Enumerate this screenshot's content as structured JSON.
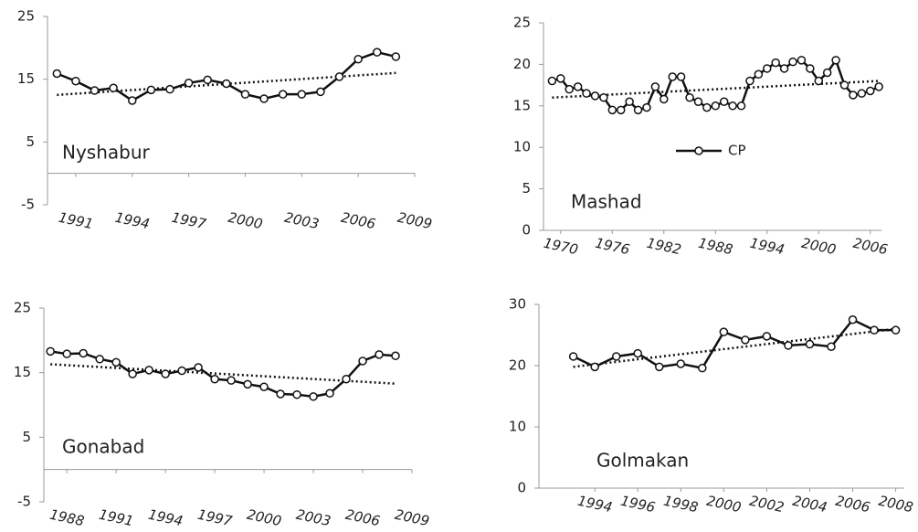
{
  "chart_data": [
    {
      "type": "line",
      "label": "Nyshabur",
      "x": [
        1990,
        1991,
        1992,
        1993,
        1994,
        1995,
        1996,
        1997,
        1998,
        1999,
        2000,
        2001,
        2002,
        2003,
        2004,
        2005,
        2006,
        2007,
        2008
      ],
      "series": [
        {
          "name": "CP",
          "color": "#111111",
          "values": [
            15.9,
            14.7,
            13.2,
            13.6,
            11.6,
            13.3,
            13.4,
            14.4,
            14.9,
            14.3,
            12.6,
            11.9,
            12.6,
            12.6,
            13.0,
            15.4,
            18.2,
            19.3,
            18.6
          ]
        }
      ],
      "trend": {
        "x": [
          1990,
          2008
        ],
        "values": [
          12.5,
          16.0
        ]
      },
      "xlim": [
        1989.5,
        2009
      ],
      "xticks": [
        1991,
        1994,
        1997,
        2000,
        2003,
        2006,
        2009
      ],
      "ylim": [
        -5,
        25
      ],
      "yticks": [
        -5,
        5,
        15,
        25
      ]
    },
    {
      "type": "line",
      "label": "Mashad",
      "legend": "center",
      "x": [
        1969,
        1970,
        1971,
        1972,
        1973,
        1974,
        1975,
        1976,
        1977,
        1978,
        1979,
        1980,
        1981,
        1982,
        1983,
        1984,
        1985,
        1986,
        1987,
        1988,
        1989,
        1990,
        1991,
        1992,
        1993,
        1994,
        1995,
        1996,
        1997,
        1998,
        1999,
        2000,
        2001,
        2002,
        2003,
        2004,
        2005,
        2006,
        2007
      ],
      "series": [
        {
          "name": "CP",
          "color": "#111111",
          "values": [
            18,
            18.3,
            17,
            17.3,
            16.5,
            16.2,
            16,
            14.5,
            14.5,
            15.5,
            14.5,
            14.8,
            17.3,
            15.8,
            18.5,
            18.5,
            16,
            15.5,
            14.8,
            15,
            15.5,
            15,
            15,
            18,
            18.8,
            19.5,
            20.2,
            19.5,
            20.3,
            20.5,
            19.5,
            18,
            19,
            20.5,
            17.5,
            16.3,
            16.5,
            16.8,
            17.3
          ]
        }
      ],
      "trend": {
        "x": [
          1969,
          2007
        ],
        "values": [
          16.0,
          18.0
        ]
      },
      "xlim": [
        1968,
        2007.3
      ],
      "xticks": [
        1970,
        1976,
        1982,
        1988,
        1994,
        2000,
        2006
      ],
      "ylim": [
        0,
        25
      ],
      "yticks": [
        0,
        5,
        10,
        15,
        20,
        25
      ]
    },
    {
      "type": "line",
      "label": "Gonabad",
      "x": [
        1987,
        1988,
        1989,
        1990,
        1991,
        1992,
        1993,
        1994,
        1995,
        1996,
        1997,
        1998,
        1999,
        2000,
        2001,
        2002,
        2003,
        2004,
        2005,
        2006,
        2007,
        2008
      ],
      "series": [
        {
          "name": "CP",
          "color": "#111111",
          "values": [
            18.3,
            17.9,
            18,
            17.1,
            16.6,
            14.8,
            15.4,
            14.8,
            15.3,
            15.8,
            14,
            13.8,
            13.2,
            12.8,
            11.7,
            11.6,
            11.3,
            11.8,
            14,
            16.8,
            17.8,
            17.6
          ]
        }
      ],
      "trend": {
        "x": [
          1987,
          2008
        ],
        "values": [
          16.3,
          13.3
        ]
      },
      "xlim": [
        1986.6,
        2009
      ],
      "xticks": [
        1988,
        1991,
        1994,
        1997,
        2000,
        2003,
        2006,
        2009
      ],
      "ylim": [
        -5,
        25
      ],
      "yticks": [
        -5,
        5,
        15,
        25
      ]
    },
    {
      "type": "line",
      "label": "Golmakan",
      "x": [
        1993,
        1994,
        1995,
        1996,
        1997,
        1998,
        1999,
        2000,
        2001,
        2002,
        2003,
        2004,
        2005,
        2006,
        2007,
        2008
      ],
      "series": [
        {
          "name": "CP",
          "color": "#111111",
          "values": [
            21.5,
            19.8,
            21.5,
            22,
            19.8,
            20.3,
            19.6,
            25.5,
            24.2,
            24.8,
            23.3,
            23.5,
            23.1,
            27.5,
            25.8,
            25.8
          ]
        }
      ],
      "trend": {
        "x": [
          1993,
          2008
        ],
        "values": [
          19.8,
          26.0
        ]
      },
      "xlim": [
        1991.4,
        2008.4
      ],
      "xticks": [
        1994,
        1996,
        1998,
        2000,
        2002,
        2004,
        2006,
        2008
      ],
      "ylim": [
        0,
        30
      ],
      "yticks": [
        0,
        10,
        20,
        30
      ]
    }
  ]
}
